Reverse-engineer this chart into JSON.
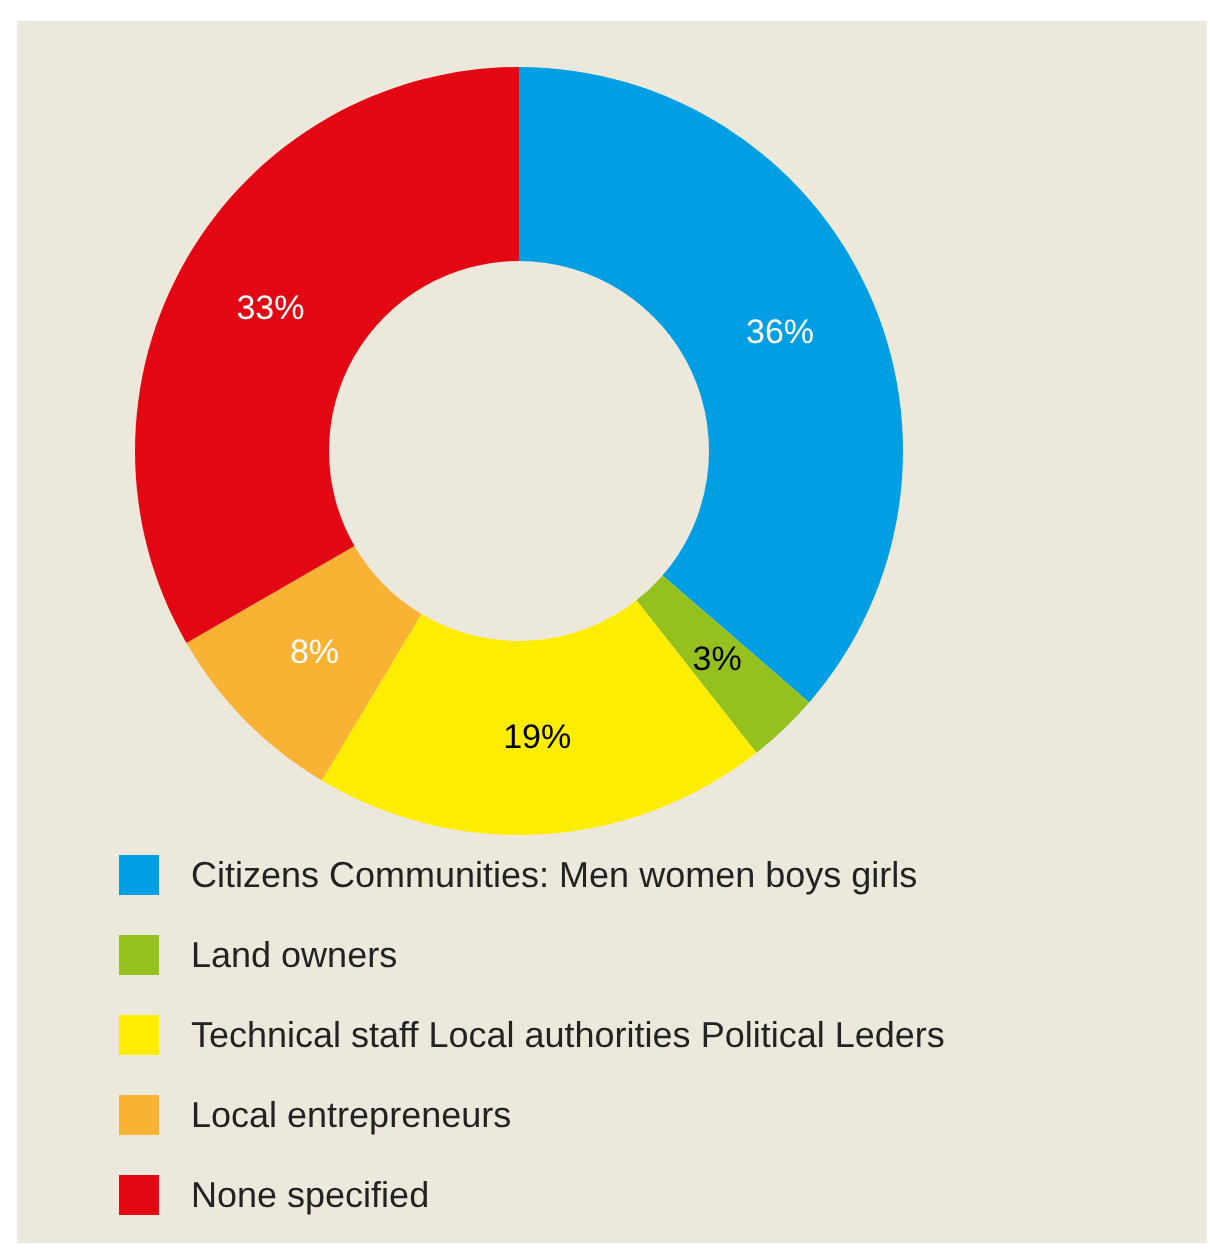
{
  "chart_data": {
    "type": "donut",
    "categories": [
      "Citizens Communities: Men women boys girls",
      "Land owners",
      "Technical staff Local authorities Political Leders",
      "Local entrepreneurs",
      "None specified"
    ],
    "values": [
      36,
      3,
      19,
      8,
      33
    ],
    "colors": [
      "#009fe3",
      "#95c11f",
      "#ffed00",
      "#f9b233",
      "#e30613"
    ],
    "value_labels": [
      "36%",
      "3%",
      "19%",
      "8%",
      "33%"
    ],
    "legend": "bottom"
  }
}
